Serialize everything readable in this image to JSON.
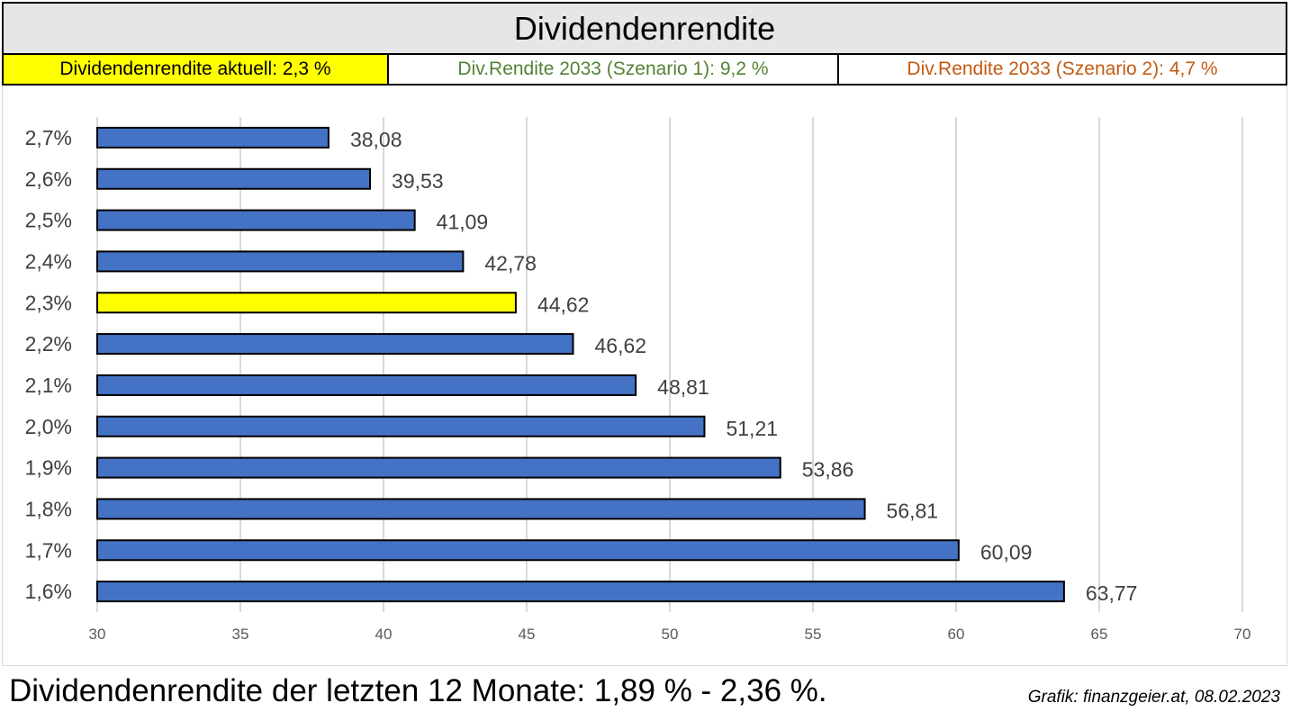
{
  "header": {
    "title": "Dividendenrendite",
    "current": "Dividendenrendite aktuell: 2,3 %",
    "scenario1": "Div.Rendite 2033 (Szenario 1): 9,2 %",
    "scenario2": "Div.Rendite 2033 (Szenario 2): 4,7 %"
  },
  "colors": {
    "bar": "#4472c4",
    "highlight": "#ffff00",
    "scenario1_text": "#548235",
    "scenario2_text": "#c55a11",
    "grid": "#d9d9d9",
    "label": "#404040",
    "tick_label": "#595959"
  },
  "footer": {
    "summary": "Dividendenrendite der letzten 12 Monate: 1,89 % - 2,36 %.",
    "credit": "Grafik: finanzgeier.at, 08.02.2023"
  },
  "chart_data": {
    "type": "bar",
    "orientation": "horizontal",
    "categories": [
      "2,7%",
      "2,6%",
      "2,5%",
      "2,4%",
      "2,3%",
      "2,2%",
      "2,1%",
      "2,0%",
      "1,9%",
      "1,8%",
      "1,7%",
      "1,6%"
    ],
    "values": [
      38.08,
      39.53,
      41.09,
      42.78,
      44.62,
      46.62,
      48.81,
      51.21,
      53.86,
      56.81,
      60.09,
      63.77
    ],
    "value_labels": [
      "38,08",
      "39,53",
      "41,09",
      "42,78",
      "44,62",
      "46,62",
      "48,81",
      "51,21",
      "53,86",
      "56,81",
      "60,09",
      "63,77"
    ],
    "highlight_category": "2,3%",
    "xlim": [
      30,
      70
    ],
    "xticks": [
      "30",
      "35",
      "40",
      "45",
      "50",
      "55",
      "60",
      "65",
      "70"
    ],
    "grid": true,
    "legend": "none"
  }
}
